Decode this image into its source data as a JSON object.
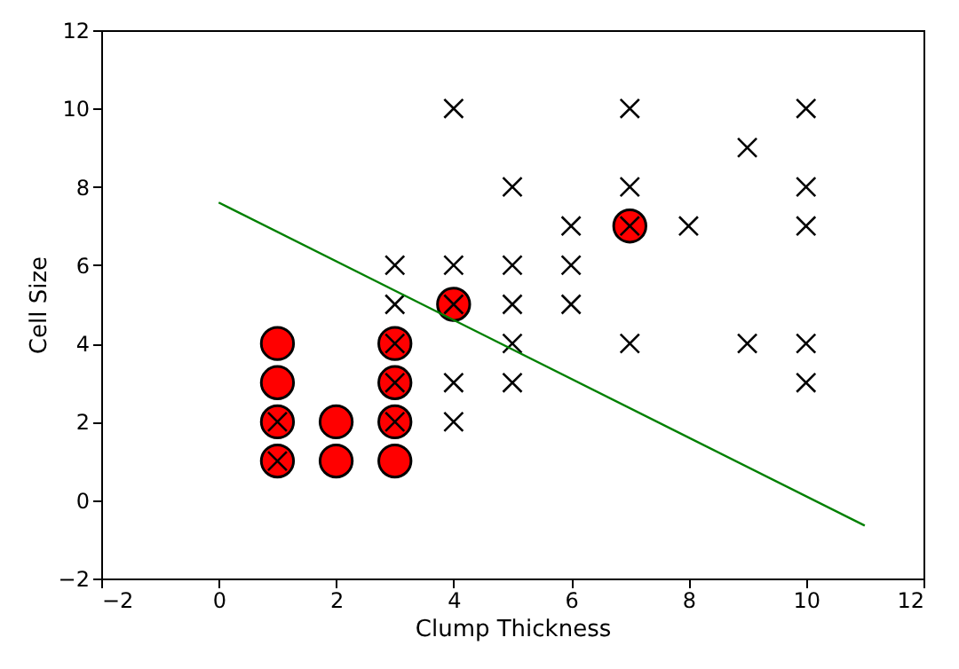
{
  "chart_data": {
    "type": "scatter",
    "xlabel": "Clump Thickness",
    "ylabel": "Cell Size",
    "xlim": [
      -2,
      12
    ],
    "ylim": [
      -2,
      12
    ],
    "xticks": [
      -2,
      0,
      2,
      4,
      6,
      8,
      10,
      12
    ],
    "yticks": [
      -2,
      0,
      2,
      4,
      6,
      8,
      10,
      12
    ],
    "grid": false,
    "series": [
      {
        "marker": "circle",
        "color": "#ff0000",
        "x": [
          1,
          1,
          1,
          1,
          2,
          2,
          3,
          3,
          3,
          3,
          4,
          7
        ],
        "values": [
          1,
          2,
          3,
          4,
          1,
          2,
          1,
          2,
          3,
          4,
          5,
          7
        ]
      },
      {
        "marker": "cross",
        "color": "#000000",
        "x": [
          1,
          1,
          3,
          3,
          3,
          3,
          3,
          4,
          4,
          4,
          4,
          4,
          5,
          5,
          5,
          5,
          5,
          6,
          6,
          6,
          7,
          7,
          7,
          7,
          8,
          9,
          9,
          10,
          10,
          10,
          10,
          10
        ],
        "values": [
          1,
          2,
          2,
          3,
          4,
          5,
          6,
          2,
          3,
          5,
          6,
          10,
          3,
          4,
          5,
          6,
          8,
          5,
          6,
          7,
          4,
          7,
          8,
          10,
          7,
          4,
          9,
          3,
          4,
          7,
          8,
          10
        ]
      },
      {
        "type": "line",
        "color": "#008000",
        "x": [
          0,
          11
        ],
        "values": [
          7.6,
          -0.65
        ]
      }
    ]
  }
}
